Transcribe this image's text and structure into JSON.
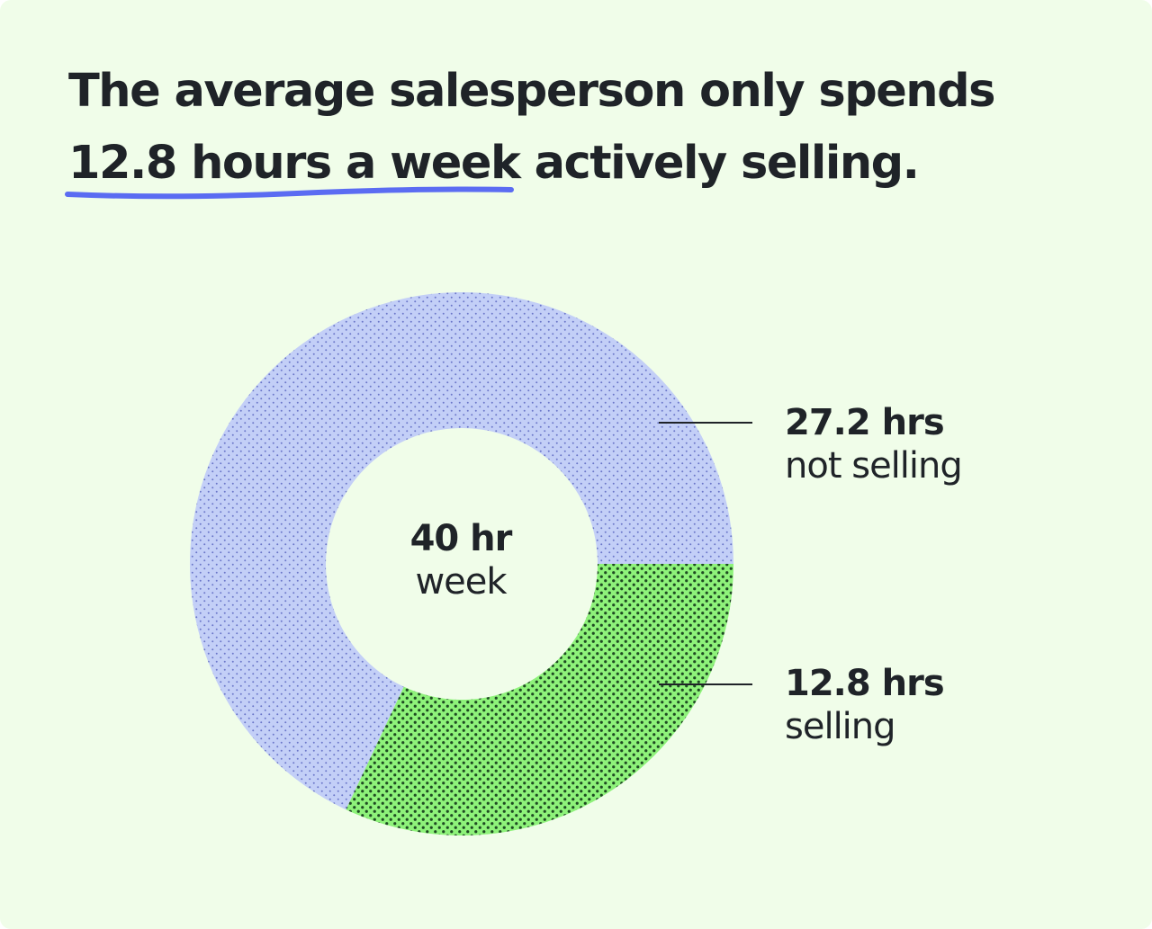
{
  "headline": {
    "line1": "The average salesperson only spends",
    "highlight": "12.8 hours a week",
    "rest": " actively selling."
  },
  "colors": {
    "background": "#f0fde9",
    "text": "#1f2328",
    "underline": "#5b6cf2",
    "not_selling_fill": "#c3cff7",
    "not_selling_dots": "#6b76c9",
    "selling_fill": "#8ef27a",
    "selling_dots": "#1e4a22",
    "leader_line": "#1f2328"
  },
  "chart_data": {
    "type": "pie",
    "variant": "donut",
    "total": 40,
    "center_label": {
      "value": "40 hr",
      "unit": "week"
    },
    "slices": [
      {
        "name": "not selling",
        "value": 27.2,
        "label_value": "27.2 hrs",
        "label_name": "not selling",
        "fill": "dotted-blue"
      },
      {
        "name": "selling",
        "value": 12.8,
        "label_value": "12.8 hrs",
        "label_name": "selling",
        "fill": "dotted-green"
      }
    ],
    "legend": "none",
    "labels": "right"
  }
}
